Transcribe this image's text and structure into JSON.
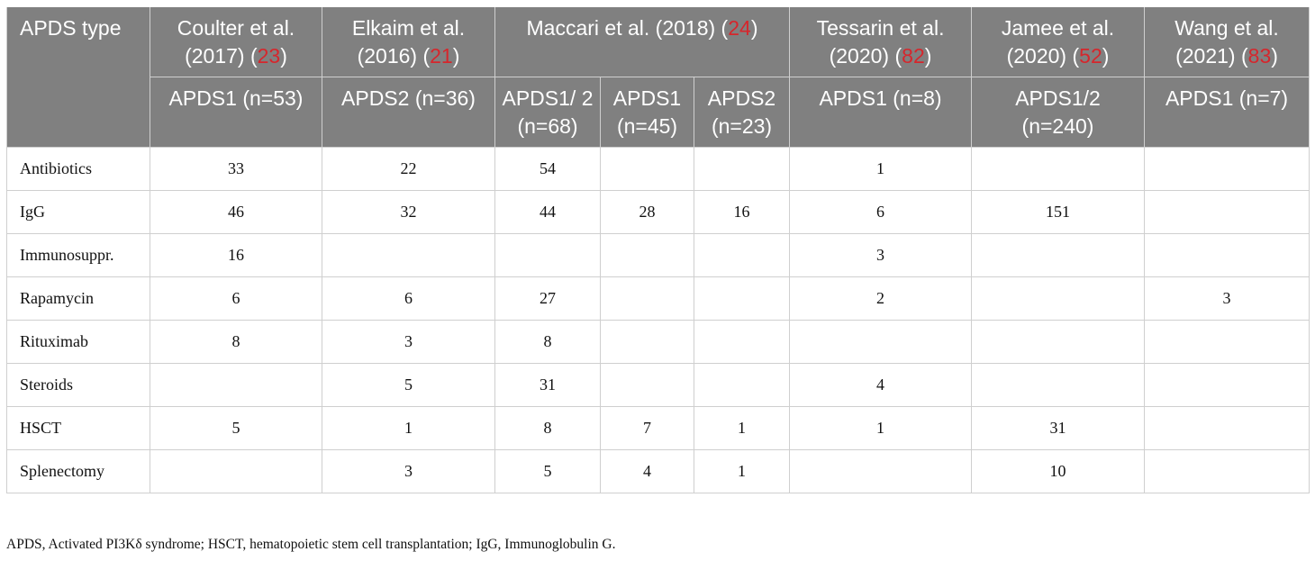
{
  "header": {
    "row1": {
      "type_label": "APDS type",
      "studies": [
        {
          "pre": "Coulter et al. (2017) (",
          "ref": "23",
          "post": ")"
        },
        {
          "pre": "Elkaim et al. (2016) (",
          "ref": "21",
          "post": ")"
        },
        {
          "pre": "Maccari et al. (2018) (",
          "ref": "24",
          "post": ")"
        },
        {
          "pre": "Tessarin et al. (2020) (",
          "ref": "82",
          "post": ")"
        },
        {
          "pre": "Jamee et al. (2020) (",
          "ref": "52",
          "post": ")"
        },
        {
          "pre": "Wang et al. (2021) (",
          "ref": "83",
          "post": ")"
        }
      ]
    },
    "row2": [
      "APDS1 (n=53)",
      "APDS2 (n=36)",
      "APDS1/ 2 (n=68)",
      "APDS1 (n=45)",
      "APDS2 (n=23)",
      "APDS1 (n=8)",
      "APDS1/2 (n=240)",
      "APDS1 (n=7)"
    ]
  },
  "rows": [
    {
      "label": "Antibiotics",
      "cells": [
        "33",
        "22",
        "54",
        "",
        "",
        "1",
        "",
        ""
      ]
    },
    {
      "label": "IgG",
      "cells": [
        "46",
        "32",
        "44",
        "28",
        "16",
        "6",
        "151",
        ""
      ]
    },
    {
      "label": "Immunosuppr.",
      "cells": [
        "16",
        "",
        "",
        "",
        "",
        "3",
        "",
        ""
      ]
    },
    {
      "label": "Rapamycin",
      "cells": [
        "6",
        "6",
        "27",
        "",
        "",
        "2",
        "",
        "3"
      ]
    },
    {
      "label": "Rituximab",
      "cells": [
        "8",
        "3",
        "8",
        "",
        "",
        "",
        "",
        ""
      ]
    },
    {
      "label": "Steroids",
      "cells": [
        "",
        "5",
        "31",
        "",
        "",
        "4",
        "",
        ""
      ]
    },
    {
      "label": "HSCT",
      "cells": [
        "5",
        "1",
        "8",
        "7",
        "1",
        "1",
        "31",
        ""
      ]
    },
    {
      "label": "Splenectomy",
      "cells": [
        "",
        "3",
        "5",
        "4",
        "1",
        "",
        "10",
        ""
      ]
    }
  ],
  "footnote": "APDS, Activated PI3Kδ syndrome; HSCT, hematopoietic stem cell transplantation; IgG, Immunoglobulin G."
}
